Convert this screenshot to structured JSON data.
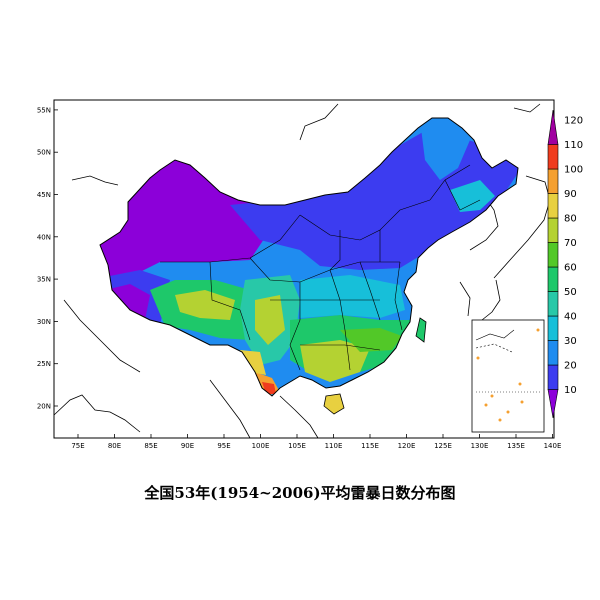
{
  "map": {
    "caption": "全国53年(1954~2006)平均雷暴日数分布图",
    "lon_ticks": [
      "75E",
      "80E",
      "85E",
      "90E",
      "95E",
      "100E",
      "105E",
      "110E",
      "115E",
      "120E",
      "125E",
      "130E",
      "135E",
      "140E"
    ],
    "lat_ticks": [
      "20N",
      "25N",
      "30N",
      "35N",
      "40N",
      "45N",
      "50N",
      "55N"
    ],
    "colorbar": {
      "labels": [
        "10",
        "20",
        "30",
        "40",
        "50",
        "60",
        "70",
        "80",
        "90",
        "100",
        "110",
        "120"
      ],
      "colors": [
        "#8c00d9",
        "#3c3cf0",
        "#1f8cf0",
        "#17bfd9",
        "#28c8a8",
        "#1ec86a",
        "#52c828",
        "#b4d232",
        "#e8d040",
        "#f5a030",
        "#f03c1e",
        "#a000a0"
      ]
    },
    "unit": "",
    "value_range": [
      0,
      120
    ]
  }
}
